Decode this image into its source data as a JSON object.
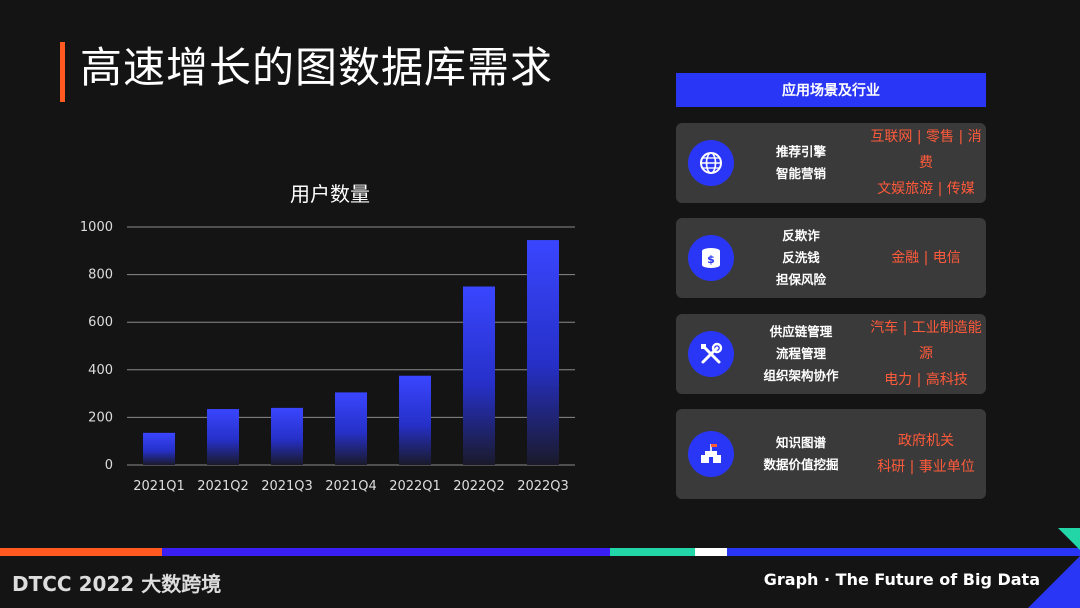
{
  "title": "高速增长的图数据库需求",
  "panel": {
    "header": "应用场景及行业",
    "cards": [
      {
        "icon": "globe-icon",
        "mid": [
          "推荐引擎",
          "智能营销"
        ],
        "right": [
          "互联网 | 零售 | 消费",
          "文娱旅游 | 传媒"
        ]
      },
      {
        "icon": "coins-icon",
        "mid": [
          "反欺诈",
          "反洗钱",
          "担保风险"
        ],
        "right": [
          "金融 | 电信"
        ]
      },
      {
        "icon": "tools-icon",
        "mid": [
          "供应链管理",
          "流程管理",
          "组织架构协作"
        ],
        "right": [
          "汽车 | 工业制造能源",
          "电力 | 高科技"
        ]
      },
      {
        "icon": "building-icon",
        "mid": [
          "知识图谱",
          "数据价值挖掘"
        ],
        "right": [
          "政府机关",
          "科研 | 事业单位"
        ]
      }
    ]
  },
  "chart_data": {
    "type": "bar",
    "title": "用户数量",
    "categories": [
      "2021Q1",
      "2021Q2",
      "2021Q3",
      "2021Q4",
      "2022Q1",
      "2022Q2",
      "2022Q3"
    ],
    "values": [
      135,
      235,
      240,
      305,
      375,
      750,
      945
    ],
    "ylim": [
      0,
      1000
    ],
    "yticks": [
      0,
      200,
      400,
      600,
      800,
      1000
    ],
    "grid": true,
    "bar_color": "#3a46ff"
  },
  "footer": {
    "brand": "DTCC 2022 大数跨境",
    "tagline": "Graph · The Future of Big Data"
  },
  "colors": {
    "accent": "#ff5a1f",
    "blue": "#2a36f5",
    "card": "#3a3a3a",
    "orange_text": "#ff5a3a"
  }
}
